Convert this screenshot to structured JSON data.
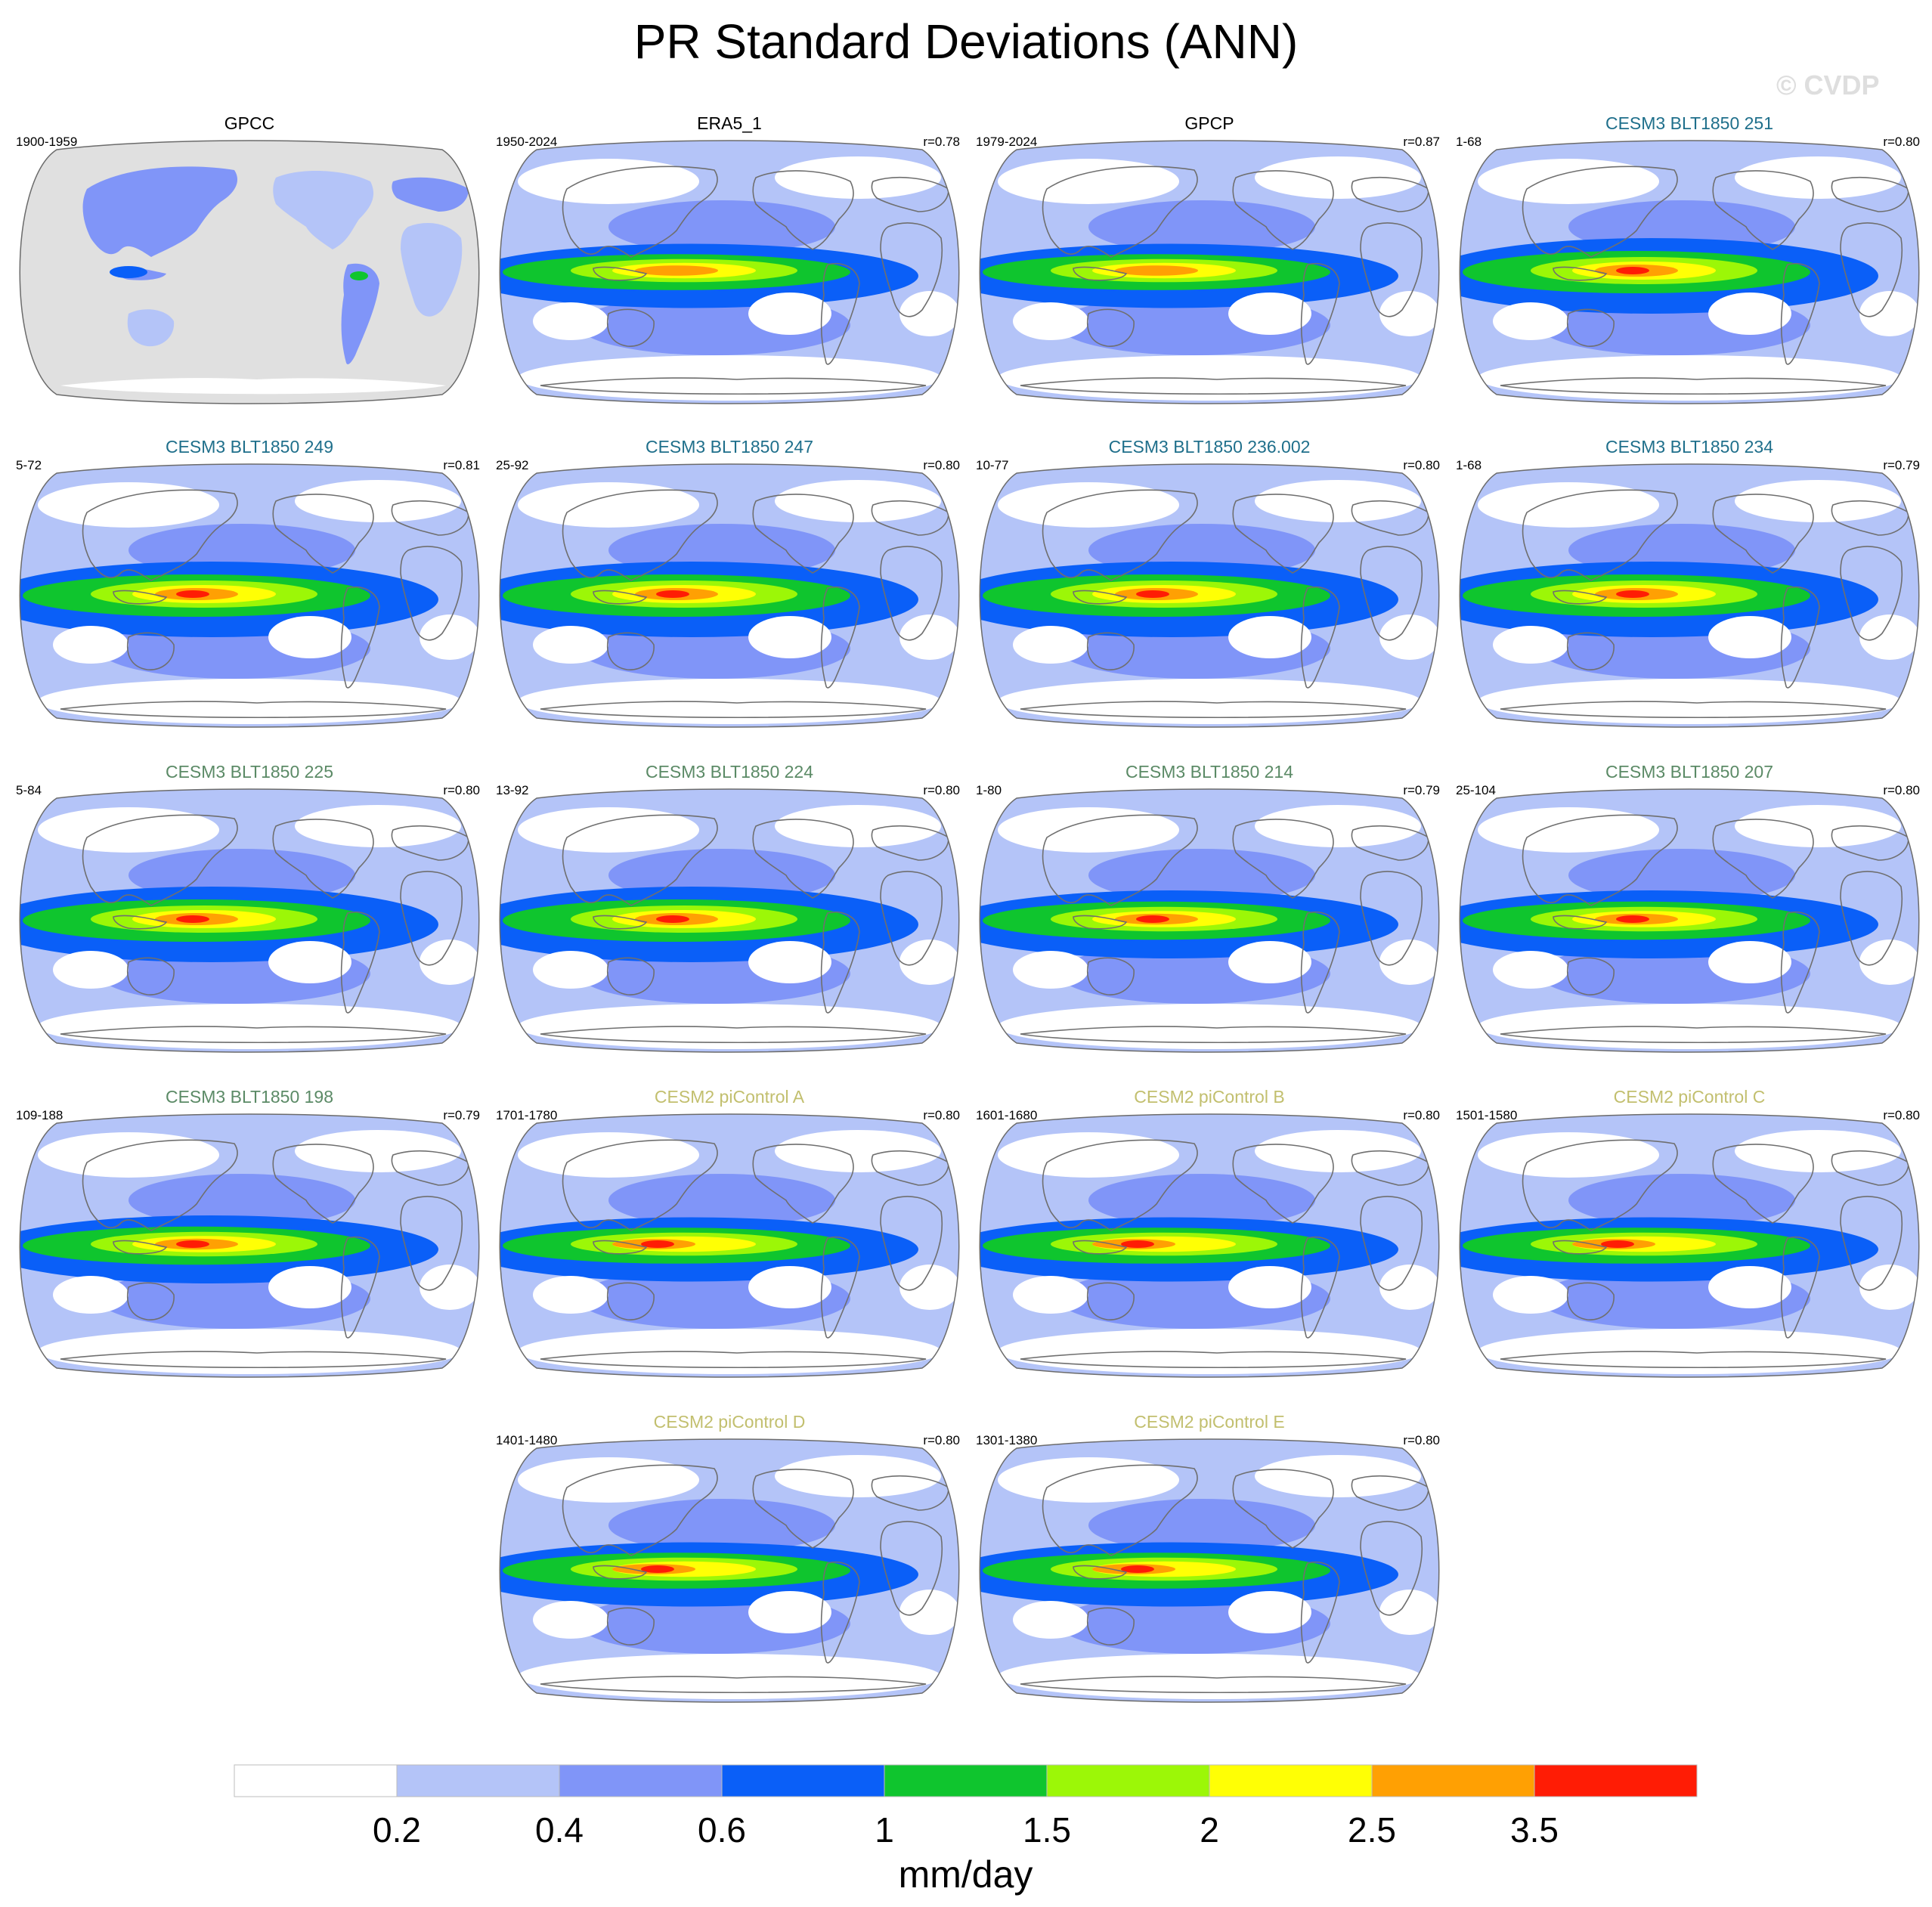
{
  "title": "PR Standard Deviations (ANN)",
  "watermark": "© CVDP",
  "panels": [
    {
      "title": "GPCC",
      "range": "1900-1959",
      "corr": "",
      "style": "obs",
      "title_color": "#000000"
    },
    {
      "title": "ERA5_1",
      "range": "1950-2024",
      "corr": "r=0.78",
      "style": "obs",
      "title_color": "#000000"
    },
    {
      "title": "GPCP",
      "range": "1979-2024",
      "corr": "r=0.87",
      "style": "obs",
      "title_color": "#000000"
    },
    {
      "title": "CESM3 BLT1850 251",
      "range": "1-68",
      "corr": "r=0.80",
      "style": "strong",
      "title_color": "#1f6f8b"
    },
    {
      "title": "CESM3 BLT1850 249",
      "range": "5-72",
      "corr": "r=0.81",
      "style": "strong",
      "title_color": "#1f6f8b"
    },
    {
      "title": "CESM3 BLT1850 247",
      "range": "25-92",
      "corr": "r=0.80",
      "style": "strong",
      "title_color": "#1f6f8b"
    },
    {
      "title": "CESM3 BLT1850 236.002",
      "range": "10-77",
      "corr": "r=0.80",
      "style": "strong",
      "title_color": "#1f6f8b"
    },
    {
      "title": "CESM3 BLT1850 234",
      "range": "1-68",
      "corr": "r=0.79",
      "style": "strong",
      "title_color": "#1f6f8b"
    },
    {
      "title": "CESM3 BLT1850 225",
      "range": "5-84",
      "corr": "r=0.80",
      "style": "strong",
      "title_color": "#5b8a66"
    },
    {
      "title": "CESM3 BLT1850 224",
      "range": "13-92",
      "corr": "r=0.80",
      "style": "strong",
      "title_color": "#5b8a66"
    },
    {
      "title": "CESM3 BLT1850 214",
      "range": "1-80",
      "corr": "r=0.79",
      "style": "medium",
      "title_color": "#5b8a66"
    },
    {
      "title": "CESM3 BLT1850 207",
      "range": "25-104",
      "corr": "r=0.80",
      "style": "medium",
      "title_color": "#5b8a66"
    },
    {
      "title": "CESM3 BLT1850 198",
      "range": "109-188",
      "corr": "r=0.79",
      "style": "medium",
      "title_color": "#5b8a66"
    },
    {
      "title": "CESM2 piControl A",
      "range": "1701-1780",
      "corr": "r=0.80",
      "style": "cesm2",
      "title_color": "#c2bf6e"
    },
    {
      "title": "CESM2 piControl B",
      "range": "1601-1680",
      "corr": "r=0.80",
      "style": "cesm2",
      "title_color": "#c2bf6e"
    },
    {
      "title": "CESM2 piControl C",
      "range": "1501-1580",
      "corr": "r=0.80",
      "style": "cesm2",
      "title_color": "#c2bf6e"
    },
    {
      "title": "CESM2 piControl D",
      "range": "1401-1480",
      "corr": "r=0.80",
      "style": "cesm2",
      "title_color": "#c2bf6e"
    },
    {
      "title": "CESM2 piControl E",
      "range": "1301-1380",
      "corr": "r=0.80",
      "style": "cesm2",
      "title_color": "#c2bf6e"
    }
  ],
  "chart_data": {
    "type": "heatmap",
    "title": "PR Standard Deviations (ANN)",
    "units": "mm/day",
    "levels": [
      "0.2",
      "0.4",
      "0.6",
      "1",
      "1.5",
      "2",
      "2.5",
      "3.5"
    ],
    "level_values": [
      0.2,
      0.4,
      0.6,
      1,
      1.5,
      2,
      2.5,
      3.5
    ],
    "colors": [
      "#ffffff",
      "#b4c4f8",
      "#8095f8",
      "#0a5ff8",
      "#0fc52e",
      "#9cf707",
      "#ffff05",
      "#ffa003",
      "#ff1c05"
    ],
    "land_mask_color": "#e0e0e0",
    "projection": "Robinson, Pacific-centered"
  }
}
